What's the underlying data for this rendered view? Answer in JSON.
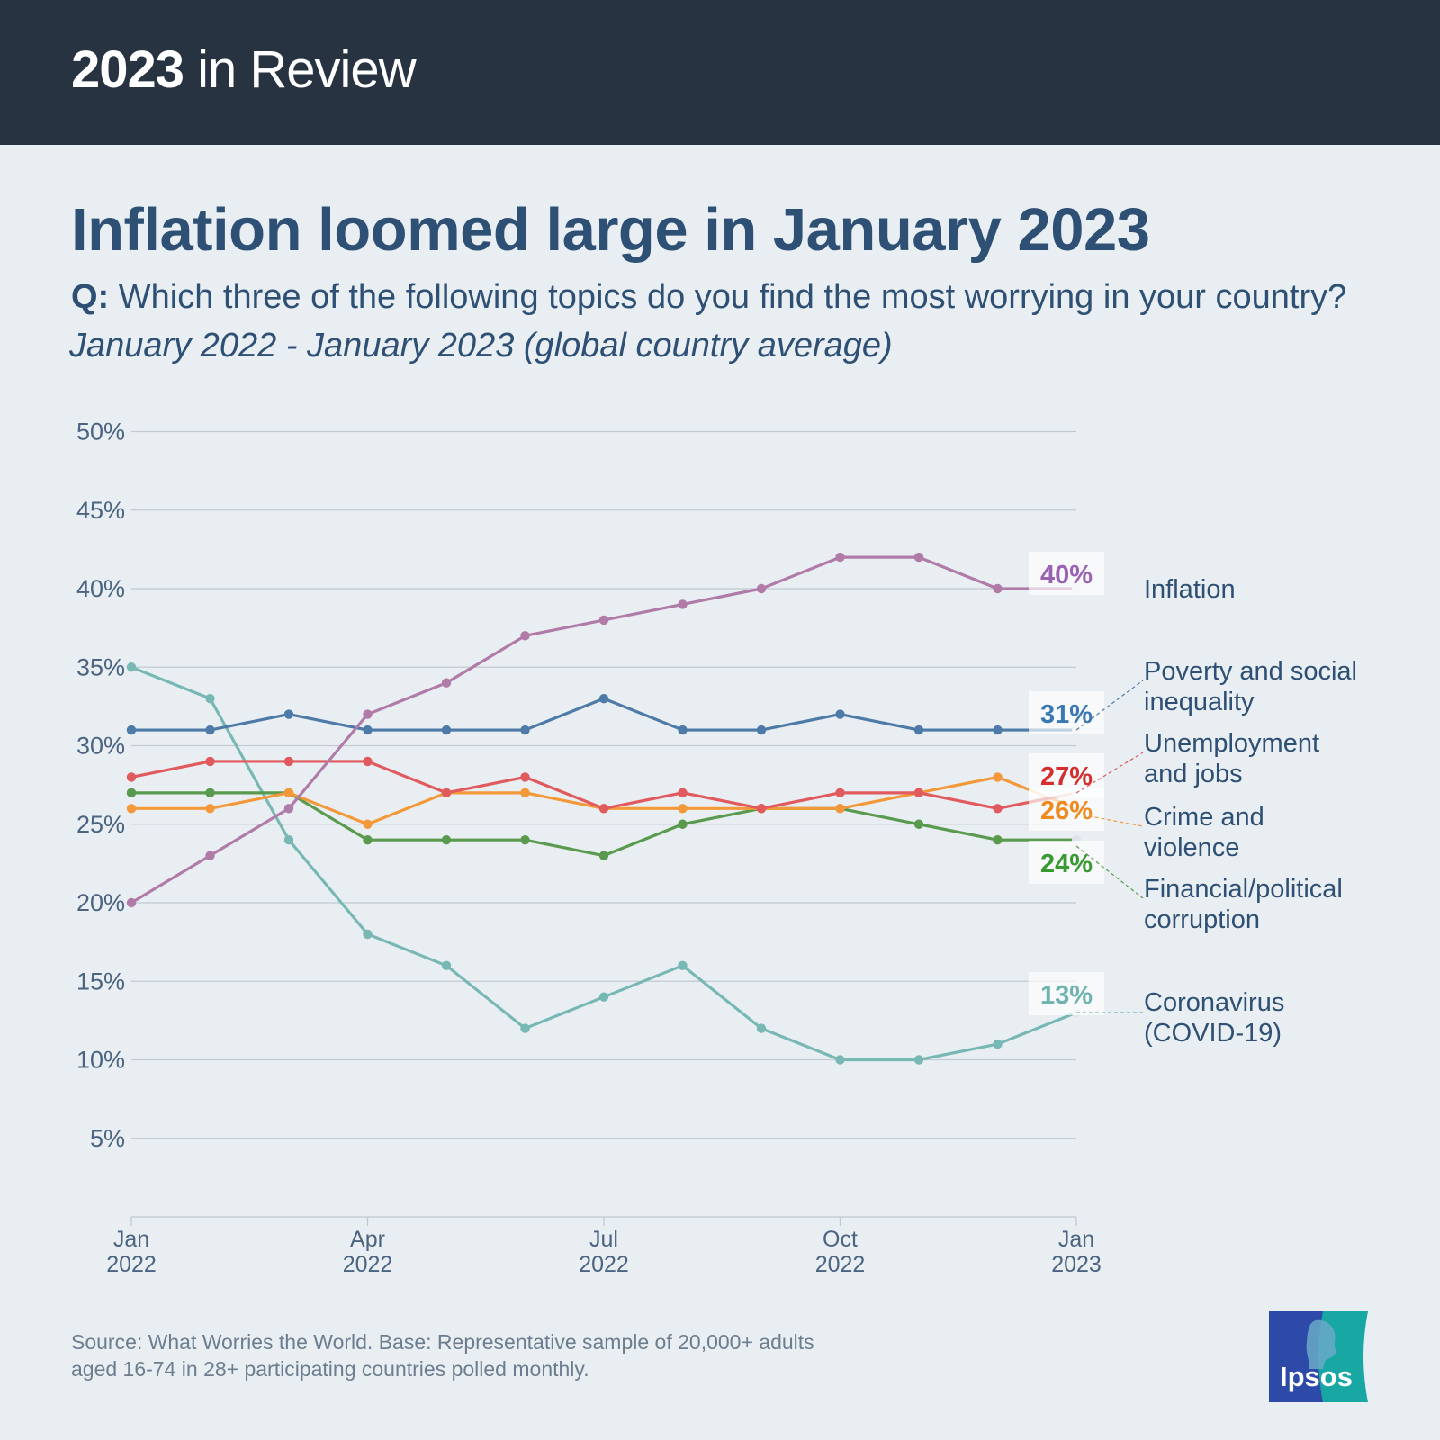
{
  "header": {
    "brand_bold": "2023",
    "brand_light": " in Review",
    "title": "Inflation loomed large in January 2023",
    "question_prefix": "Q:",
    "question": " Which three of the following topics do you find the most worrying in your country?",
    "period": "January 2022 - January 2023 (global country average)"
  },
  "footer": {
    "source_line1": "Source: What Worries the World. Base: Representative sample of 20,000+ adults",
    "source_line2": "aged 16-74 in 28+ participating countries polled monthly.",
    "logo_text": "Ipsos"
  },
  "colors": {
    "background": "#e9eef2",
    "header_bar": "#283341",
    "text_primary": "#2e5074",
    "grid": "#c2c9d0"
  },
  "chart_data": {
    "type": "line",
    "title": "Inflation loomed large in January 2023",
    "xlabel": "",
    "ylabel": "",
    "ylim": [
      0,
      50
    ],
    "y_ticks": [
      5,
      10,
      15,
      20,
      25,
      30,
      35,
      40,
      45,
      50
    ],
    "y_tick_labels": [
      "5%",
      "10%",
      "15%",
      "20%",
      "25%",
      "30%",
      "35%",
      "40%",
      "45%",
      "50%"
    ],
    "grid": true,
    "categories": [
      "Jan 2022",
      "Feb 2022",
      "Mar 2022",
      "Apr 2022",
      "May 2022",
      "Jun 2022",
      "Jul 2022",
      "Aug 2022",
      "Sep 2022",
      "Oct 2022",
      "Nov 2022",
      "Dec 2022",
      "Jan 2023"
    ],
    "x_tick_labels": [
      {
        "index": 0,
        "line1": "Jan",
        "line2": "2022"
      },
      {
        "index": 3,
        "line1": "Apr",
        "line2": "2022"
      },
      {
        "index": 6,
        "line1": "Jul",
        "line2": "2022"
      },
      {
        "index": 9,
        "line1": "Oct",
        "line2": "2022"
      },
      {
        "index": 12,
        "line1": "Jan",
        "line2": "2023"
      }
    ],
    "series": [
      {
        "name": "Coronavirus (COVID-19)",
        "label_lines": [
          "Coronavirus",
          "(COVID-19)"
        ],
        "color": "#78b8b4",
        "label_color": "#6fb3ae",
        "end_label": "13%",
        "values": [
          35,
          33,
          24,
          18,
          16,
          12,
          14,
          16,
          12,
          10,
          10,
          11,
          13
        ]
      },
      {
        "name": "Financial/political corruption",
        "label_lines": [
          "Financial/political",
          "corruption"
        ],
        "color": "#5a9a4e",
        "label_color": "#3a9a32",
        "end_label": "24%",
        "values": [
          27,
          27,
          27,
          24,
          24,
          24,
          23,
          25,
          26,
          26,
          25,
          24,
          24
        ]
      },
      {
        "name": "Crime and violence",
        "label_lines": [
          "Crime and",
          "violence"
        ],
        "color": "#f3993a",
        "label_color": "#f08a1e",
        "end_label": "26%",
        "values": [
          26,
          26,
          27,
          25,
          27,
          27,
          26,
          26,
          26,
          26,
          27,
          28,
          26
        ]
      },
      {
        "name": "Unemployment and jobs",
        "label_lines": [
          "Unemployment",
          "and jobs"
        ],
        "color": "#e05a5e",
        "label_color": "#d42e2e",
        "end_label": "27%",
        "values": [
          28,
          29,
          29,
          29,
          27,
          28,
          26,
          27,
          26,
          27,
          27,
          26,
          27
        ]
      },
      {
        "name": "Poverty and social inequality",
        "label_lines": [
          "Poverty and social",
          "inequality"
        ],
        "color": "#4e7aa8",
        "label_color": "#3a78b4",
        "end_label": "31%",
        "values": [
          31,
          31,
          32,
          31,
          31,
          31,
          33,
          31,
          31,
          32,
          31,
          31,
          31
        ]
      },
      {
        "name": "Inflation",
        "label_lines": [
          "Inflation"
        ],
        "color": "#b07ba8",
        "label_color": "#9a62b2",
        "end_label": "40%",
        "values": [
          20,
          23,
          26,
          32,
          34,
          37,
          38,
          39,
          40,
          42,
          42,
          40,
          40
        ]
      }
    ]
  }
}
